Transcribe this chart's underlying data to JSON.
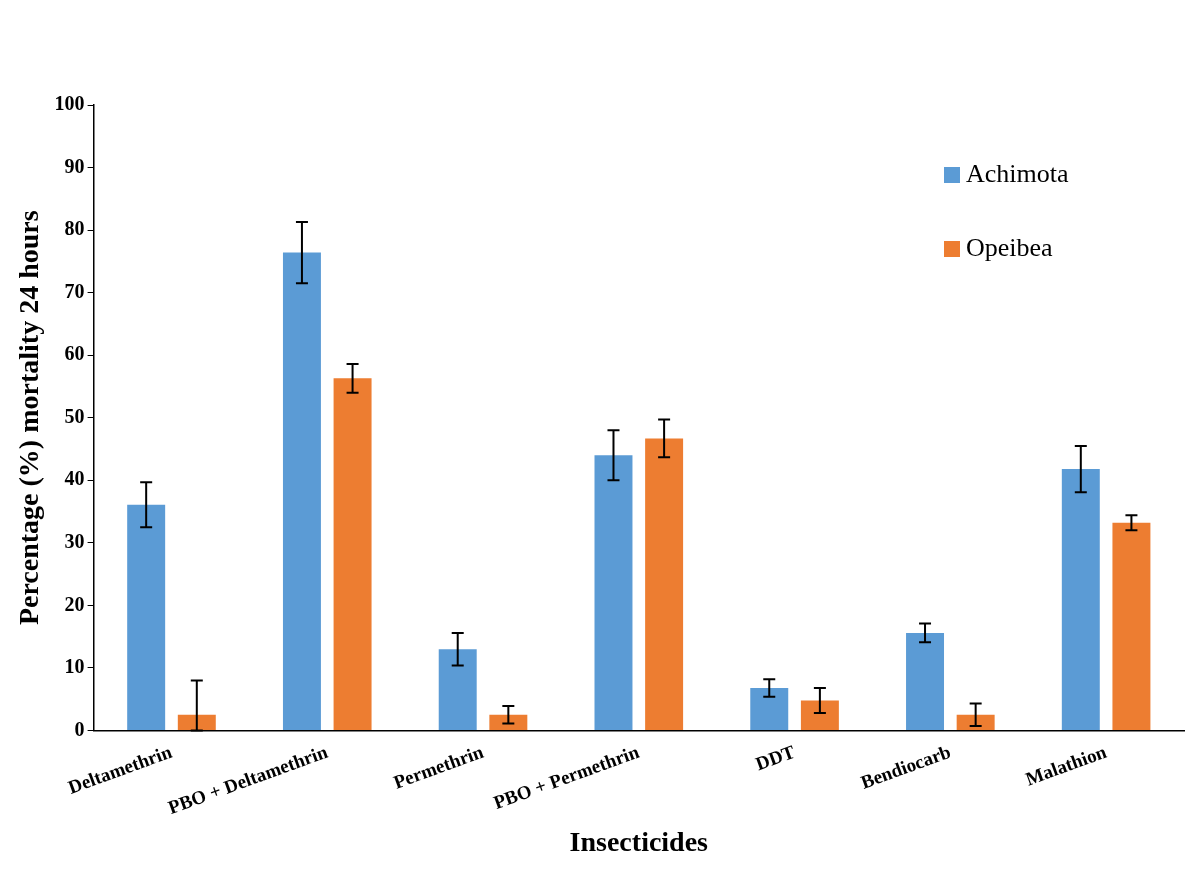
{
  "chart_data": {
    "type": "bar",
    "xlabel": "Insecticides",
    "ylabel": "Percentage (%) mortality 24 hours",
    "categories": [
      "Deltamethrin",
      "PBO + Deltamethrin",
      "Permethrin",
      "PBO + Permethrin",
      "DDT",
      "Bendiocarb",
      "Malathion"
    ],
    "series": [
      {
        "name": "Achimota",
        "color": "#5b9bd5",
        "values": [
          36.1,
          76.4,
          13.0,
          44.0,
          6.8,
          15.6,
          41.8
        ],
        "errors": [
          3.6,
          4.9,
          2.6,
          4.0,
          1.4,
          1.5,
          3.7
        ]
      },
      {
        "name": "Opeibea",
        "color": "#ed7d31",
        "values": [
          2.5,
          56.3,
          2.5,
          46.7,
          4.8,
          2.5,
          33.2
        ],
        "errors": [
          [
            0,
            8.0
          ],
          2.3,
          1.4,
          3.0,
          2.0,
          1.8,
          1.2
        ]
      }
    ],
    "ylim": [
      0,
      100
    ],
    "yticks": [
      0,
      10,
      20,
      30,
      40,
      50,
      60,
      70,
      80,
      90,
      100
    ],
    "grid": false,
    "legend": "top right"
  }
}
